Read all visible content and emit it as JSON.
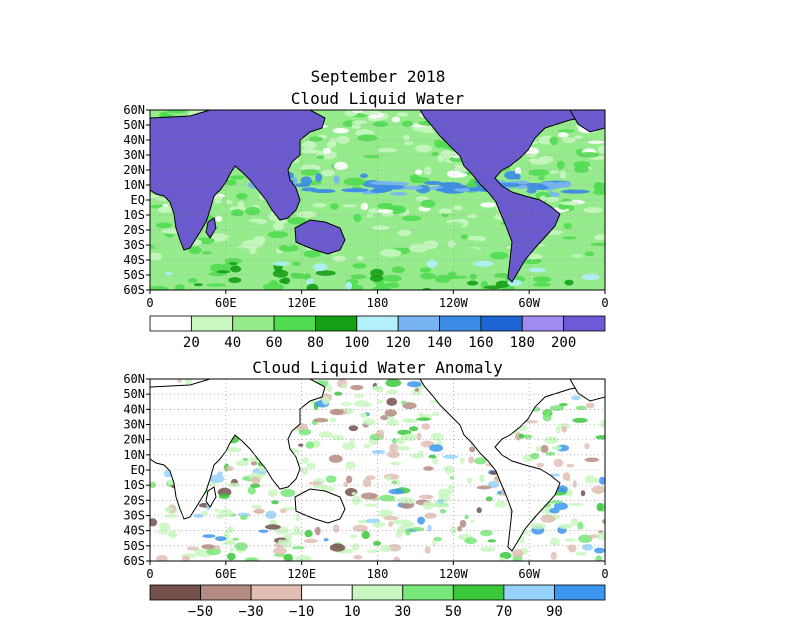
{
  "figure": {
    "title": "September 2018",
    "colors": {
      "land": "#6a5acd",
      "ocean_low": "#ffffff",
      "coast": "#000000"
    }
  },
  "panels": [
    {
      "id": "clw",
      "title": "Cloud Liquid Water",
      "lat_labels": [
        "60N",
        "50N",
        "40N",
        "30N",
        "20N",
        "10N",
        "EQ",
        "10S",
        "20S",
        "30S",
        "40S",
        "50S",
        "60S"
      ],
      "lon_labels": [
        "0",
        "60E",
        "120E",
        "180",
        "120W",
        "60W",
        "0"
      ],
      "colorbar": {
        "colors": [
          "#ffffff",
          "#c8f7c0",
          "#96eb8c",
          "#50dc50",
          "#14a014",
          "#b4f0fa",
          "#78b4f0",
          "#3c8ce6",
          "#1e64d2",
          "#a08cf0",
          "#6e5ad6"
        ],
        "labels": [
          "20",
          "40",
          "60",
          "80",
          "100",
          "120",
          "140",
          "160",
          "180",
          "200"
        ]
      }
    },
    {
      "id": "anom",
      "title": "Cloud Liquid Water Anomaly",
      "lat_labels": [
        "60N",
        "50N",
        "40N",
        "30N",
        "20N",
        "10N",
        "EQ",
        "10S",
        "20S",
        "30S",
        "40S",
        "50S",
        "60S"
      ],
      "lon_labels": [
        "0",
        "60E",
        "120E",
        "180",
        "120W",
        "60W",
        "0"
      ],
      "colorbar": {
        "colors": [
          "#73504b",
          "#b48c82",
          "#e1beb4",
          "#ffffff",
          "#c8f7c0",
          "#78e678",
          "#3cc83c",
          "#96d2fa",
          "#3c96f0"
        ],
        "labels": [
          "−50",
          "−30",
          "−10",
          "10",
          "30",
          "50",
          "70",
          "90"
        ]
      }
    }
  ]
}
